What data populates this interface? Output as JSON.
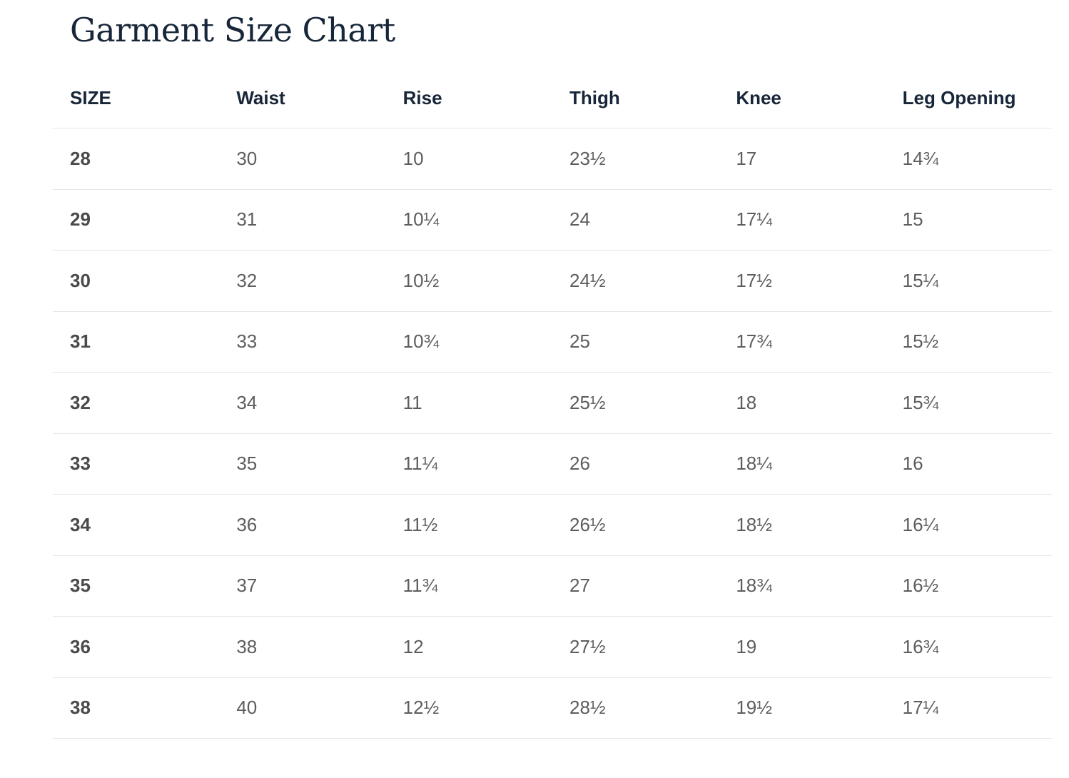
{
  "title": "Garment Size Chart",
  "table": {
    "headers": [
      "SIZE",
      "Waist",
      "Rise",
      "Thigh",
      "Knee",
      "Leg Opening"
    ],
    "rows": [
      [
        "28",
        "30",
        "10",
        "23½",
        "17",
        "14¾"
      ],
      [
        "29",
        "31",
        "10¼",
        "24",
        "17¼",
        "15"
      ],
      [
        "30",
        "32",
        "10½",
        "24½",
        "17½",
        "15¼"
      ],
      [
        "31",
        "33",
        "10¾",
        "25",
        "17¾",
        "15½"
      ],
      [
        "32",
        "34",
        "11",
        "25½",
        "18",
        "15¾"
      ],
      [
        "33",
        "35",
        "11¼",
        "26",
        "18¼",
        "16"
      ],
      [
        "34",
        "36",
        "11½",
        "26½",
        "18½",
        "16¼"
      ],
      [
        "35",
        "37",
        "11¾",
        "27",
        "18¾",
        "16½"
      ],
      [
        "36",
        "38",
        "12",
        "27½",
        "19",
        "16¾"
      ],
      [
        "38",
        "40",
        "12½",
        "28½",
        "19½",
        "17¼"
      ]
    ]
  },
  "colors": {
    "title": "#172638",
    "header_text": "#172638",
    "cell_text": "#5d5d5d",
    "divider": "#e6e6e6"
  }
}
